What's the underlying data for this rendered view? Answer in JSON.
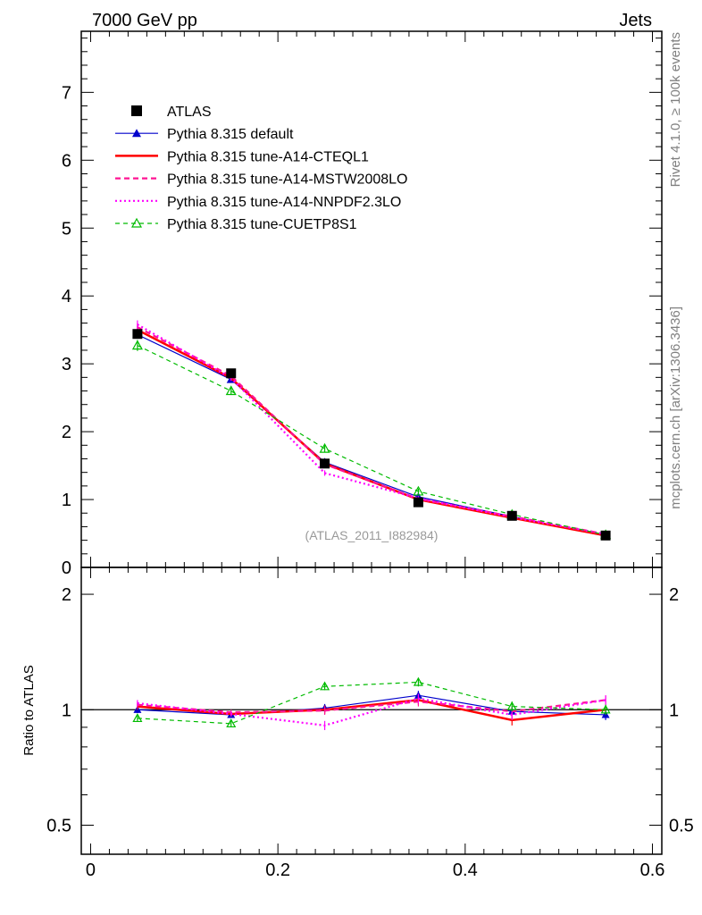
{
  "header": {
    "left": "7000 GeV pp",
    "right": "Jets"
  },
  "side_labels": {
    "rivet": "Rivet 4.1.0, ≥ 100k events",
    "mcplots": "mcplots.cern.ch [arXiv:1306.3436]"
  },
  "chart_data": {
    "type": "line",
    "analysis_label": "(ATLAS_2011_I882984)",
    "x": [
      0.05,
      0.15,
      0.25,
      0.35,
      0.45,
      0.55
    ],
    "xlim": [
      -0.01,
      0.61
    ],
    "xticks": [
      "0",
      "0.2",
      "0.4",
      "0.6"
    ],
    "main": {
      "ylim": [
        0,
        7.9
      ],
      "yticks": [
        "0",
        "1",
        "2",
        "3",
        "4",
        "5",
        "6",
        "7"
      ]
    },
    "ratio": {
      "ylabel": "Ratio to ATLAS",
      "ylim": [
        0.42,
        2.35
      ],
      "yticks": [
        "0.5",
        "1",
        "2"
      ],
      "reference": 1.0
    },
    "series": [
      {
        "name": "ATLAS",
        "color": "#000000",
        "style": "data",
        "values": [
          3.44,
          2.86,
          1.53,
          0.96,
          0.76,
          0.47
        ],
        "errors": [
          0.03,
          0.03,
          0.03,
          0.03,
          0.02,
          0.02
        ]
      },
      {
        "name": "Pythia 8.315 default",
        "color": "#0000cc",
        "style": "solid-thin",
        "marker": "triangle",
        "values": [
          3.43,
          2.77,
          1.55,
          1.04,
          0.75,
          0.46
        ],
        "errors": [
          0.06,
          0.04,
          0.04,
          0.03,
          0.03,
          0.02
        ],
        "ratio": [
          1.0,
          0.97,
          1.01,
          1.09,
          0.99,
          0.97
        ],
        "ratio_errors": [
          0.02,
          0.015,
          0.025,
          0.03,
          0.03,
          0.03
        ]
      },
      {
        "name": "Pythia 8.315 tune-A14-CTEQL1",
        "color": "#ff0000",
        "style": "solid-thick",
        "values": [
          3.5,
          2.79,
          1.53,
          1.0,
          0.73,
          0.47
        ],
        "errors": [
          0.06,
          0.04,
          0.04,
          0.03,
          0.03,
          0.02
        ],
        "ratio": [
          1.02,
          0.975,
          1.0,
          1.06,
          0.94,
          1.0
        ],
        "ratio_errors": [
          0.02,
          0.015,
          0.025,
          0.03,
          0.03,
          0.03
        ]
      },
      {
        "name": "Pythia 8.315 tune-A14-MSTW2008LO",
        "color": "#ff1493",
        "style": "dashed",
        "values": [
          3.54,
          2.82,
          1.52,
          1.01,
          0.75,
          0.49
        ],
        "errors": [
          0.06,
          0.04,
          0.04,
          0.03,
          0.03,
          0.02
        ],
        "ratio": [
          1.03,
          0.985,
          0.995,
          1.05,
          0.99,
          1.06
        ],
        "ratio_errors": [
          0.02,
          0.015,
          0.025,
          0.03,
          0.03,
          0.03
        ]
      },
      {
        "name": "Pythia 8.315 tune-A14-NNPDF2.3LO",
        "color": "#ff00ff",
        "style": "dotted",
        "values": [
          3.58,
          2.79,
          1.39,
          1.02,
          0.74,
          0.49
        ],
        "errors": [
          0.06,
          0.04,
          0.04,
          0.03,
          0.03,
          0.02
        ],
        "ratio": [
          1.04,
          0.975,
          0.91,
          1.07,
          0.97,
          1.06
        ],
        "ratio_errors": [
          0.02,
          0.015,
          0.025,
          0.03,
          0.03,
          0.03
        ]
      },
      {
        "name": "Pythia 8.315 tune-CUETP8S1",
        "color": "#00bb00",
        "style": "dashed-open-triangle",
        "values": [
          3.27,
          2.6,
          1.75,
          1.12,
          0.78,
          0.48
        ],
        "errors": [
          0.08,
          0.05,
          0.05,
          0.04,
          0.03,
          0.02
        ],
        "ratio": [
          0.95,
          0.92,
          1.15,
          1.18,
          1.02,
          1.0
        ],
        "ratio_errors": [
          0.02,
          0.015,
          0.025,
          0.03,
          0.03,
          0.03
        ]
      }
    ]
  }
}
